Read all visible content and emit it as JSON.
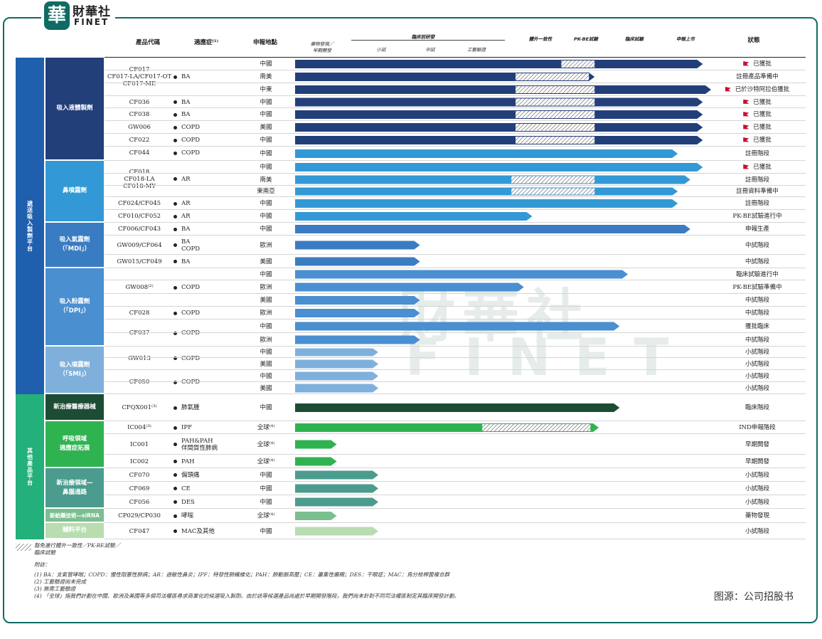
{
  "brand": {
    "mark": "華",
    "name_cn": "財華社",
    "name_en": "FINET"
  },
  "watermark": {
    "cn": "財華社",
    "en": "FINET"
  },
  "header": {
    "product_code": "產品代碼",
    "indication": "適應症⁽¹⁾",
    "region": "申報地點",
    "drug_discovery": "藥物發現／\n早期開發",
    "preclinical": "臨床前研發",
    "small_trial": "小試",
    "pilot_trial": "中試",
    "process_validation": "工藝驗證",
    "in_vitro": "體外一致性",
    "pk_be": "PK-BE試驗",
    "clinical": "臨床試驗",
    "launch": "申報上市",
    "status": "狀態"
  },
  "colors": {
    "inhal_liquid": "#233f7a",
    "nasal": "#3399d6",
    "mdi": "#3a7cc2",
    "dpi": "#4a8fd0",
    "smi": "#7fb0dc",
    "platform_1": "#1f5fae",
    "platform_2": "#23b07a",
    "device": "#1c4d34",
    "resp_expand": "#2fb350",
    "new_ent": "#4b9c8e",
    "sirna": "#7bbf90",
    "excip": "#b9ddb0",
    "accent_flag": "#c8102e"
  },
  "platforms": [
    {
      "label": "遞送吸入製劑平台"
    },
    {
      "label": "其他產品平台"
    }
  ],
  "categories": [
    {
      "label": "吸入液體製劑"
    },
    {
      "label": "鼻噴霧劑"
    },
    {
      "label": "吸入氣霧劑\n（「MDI」）"
    },
    {
      "label": "吸入粉霧劑\n（「DPI」）"
    },
    {
      "label": "吸入噴霧劑\n（「SMI」）"
    },
    {
      "label": "新治療醫療器械"
    },
    {
      "label": "呼吸領域\n適應症拓展"
    },
    {
      "label": "新治療領域—\n鼻腦通路"
    },
    {
      "label": "新給藥技術—siRNA"
    },
    {
      "label": "輔料平台"
    }
  ],
  "products": [
    {
      "code": "CF017\nCF017-LA/CF017-OT\nCF017-ME",
      "indication": "BA"
    },
    {
      "code": "CF036",
      "indication": "BA"
    },
    {
      "code": "CF038",
      "indication": "BA"
    },
    {
      "code": "GW006",
      "indication": "COPD"
    },
    {
      "code": "CF022",
      "indication": "COPD"
    },
    {
      "code": "CF044",
      "indication": "COPD"
    },
    {
      "code": "CF018\nCF018-LA\nCF018-MY",
      "indication": "AR"
    },
    {
      "code": "CF024/CF045",
      "indication": "AR"
    },
    {
      "code": "CF010/CF052",
      "indication": "AR"
    },
    {
      "code": "CF006/CF043",
      "indication": "BA"
    },
    {
      "code": "GW009/CF064",
      "indication": "BA\nCOPD"
    },
    {
      "code": "GW015/CF049",
      "indication": "BA"
    },
    {
      "code": "GW008⁽²⁾",
      "indication": "COPD"
    },
    {
      "code": "CF028",
      "indication": "COPD"
    },
    {
      "code": "CF037",
      "indication": "COPD"
    },
    {
      "code": "GW013",
      "indication": "COPD"
    },
    {
      "code": "CF050",
      "indication": "COPD"
    },
    {
      "code": "CFQX001⁽³⁾",
      "indication": "肺氣腫"
    },
    {
      "code": "IC004⁽³⁾",
      "indication": "IPF"
    },
    {
      "code": "IC001",
      "indication": "PAH&PAH\n伴間質性肺病"
    },
    {
      "code": "IC002",
      "indication": "PAH"
    },
    {
      "code": "CF070",
      "indication": "偏頭痛"
    },
    {
      "code": "CF069",
      "indication": "CE"
    },
    {
      "code": "CF056",
      "indication": "DES"
    },
    {
      "code": "CP029/CP030",
      "indication": "哮喘"
    },
    {
      "code": "CF047",
      "indication": "MAC及其他"
    }
  ],
  "rows": [
    {
      "region": "中國",
      "status": "已獲批",
      "flag": true,
      "progress": 0.98,
      "hatch": [
        0.64,
        0.72
      ]
    },
    {
      "region": "南美",
      "status": "註冊產品準備中",
      "flag": false,
      "progress": 0.72,
      "hatch": [
        0.53,
        0.72
      ]
    },
    {
      "region": "中東",
      "status": "已於沙特阿拉伯獲批",
      "flag": true,
      "progress": 1.0,
      "hatch": [
        0.53,
        0.72
      ]
    },
    {
      "region": "中國",
      "status": "已獲批",
      "flag": true,
      "progress": 0.98,
      "hatch": [
        0.53,
        0.72
      ]
    },
    {
      "region": "中國",
      "status": "已獲批",
      "flag": true,
      "progress": 0.98,
      "hatch": [
        0.53,
        0.72
      ]
    },
    {
      "region": "美國",
      "status": "已獲批",
      "flag": true,
      "progress": 0.98,
      "hatch": [
        0.53,
        0.72
      ]
    },
    {
      "region": "中國",
      "status": "已獲批",
      "flag": true,
      "progress": 0.98,
      "hatch": [
        0.53,
        0.72
      ]
    },
    {
      "region": "中國",
      "status": "註冊階段",
      "flag": false,
      "progress": 0.92,
      "hatch": null
    },
    {
      "region": "中國",
      "status": "已獲批",
      "flag": true,
      "progress": 0.98,
      "hatch": null
    },
    {
      "region": "南美",
      "status": "註冊階段",
      "flag": false,
      "progress": 0.95,
      "hatch": [
        0.52,
        0.72
      ]
    },
    {
      "region": "東南亞",
      "status": "註冊資料準備中",
      "flag": false,
      "progress": 0.92,
      "hatch": [
        0.52,
        0.72
      ]
    },
    {
      "region": "中國",
      "status": "註冊階段",
      "flag": false,
      "progress": 0.92,
      "hatch": null
    },
    {
      "region": "中國",
      "status": "PK-BE試驗進行中",
      "flag": false,
      "progress": 0.57,
      "hatch": null
    },
    {
      "region": "中國",
      "status": "申報生產",
      "flag": false,
      "progress": 0.95,
      "hatch": null
    },
    {
      "region": "歐洲",
      "status": "中試階段",
      "flag": false,
      "progress": 0.3,
      "hatch": null
    },
    {
      "region": "美國",
      "status": "中試階段",
      "flag": false,
      "progress": 0.3,
      "hatch": null
    },
    {
      "region": "中國",
      "status": "臨床試驗進行中",
      "flag": false,
      "progress": 0.8,
      "hatch": null
    },
    {
      "region": "歐洲",
      "status": "PK-BE試驗準備中",
      "flag": false,
      "progress": 0.55,
      "hatch": null
    },
    {
      "region": "美國",
      "status": "中試階段",
      "flag": false,
      "progress": 0.3,
      "hatch": null
    },
    {
      "region": "歐洲",
      "status": "中試階段",
      "flag": false,
      "progress": 0.3,
      "hatch": null
    },
    {
      "region": "中國",
      "status": "獲批臨床",
      "flag": false,
      "progress": 0.78,
      "hatch": null
    },
    {
      "region": "歐洲",
      "status": "中試階段",
      "flag": false,
      "progress": 0.3,
      "hatch": null
    },
    {
      "region": "中國",
      "status": "小試階段",
      "flag": false,
      "progress": 0.2,
      "hatch": null
    },
    {
      "region": "美國",
      "status": "小試階段",
      "flag": false,
      "progress": 0.2,
      "hatch": null
    },
    {
      "region": "中國",
      "status": "小試階段",
      "flag": false,
      "progress": 0.2,
      "hatch": null
    },
    {
      "region": "美國",
      "status": "小試階段",
      "flag": false,
      "progress": 0.2,
      "hatch": null
    },
    {
      "region": "中國",
      "status": "臨床階段",
      "flag": false,
      "progress": 0.78,
      "hatch": null
    },
    {
      "region": "全球⁽⁴⁾",
      "status": "IND申報階段",
      "flag": false,
      "progress": 0.73,
      "hatch": [
        0.45,
        0.71
      ]
    },
    {
      "region": "全球⁽⁴⁾",
      "status": "早期開發",
      "flag": false,
      "progress": 0.1,
      "hatch": null
    },
    {
      "region": "全球⁽⁴⁾",
      "status": "早期開發",
      "flag": false,
      "progress": 0.1,
      "hatch": null
    },
    {
      "region": "中國",
      "status": "小試階段",
      "flag": false,
      "progress": 0.2,
      "hatch": null
    },
    {
      "region": "中國",
      "status": "小試階段",
      "flag": false,
      "progress": 0.2,
      "hatch": null
    },
    {
      "region": "中國",
      "status": "小試階段",
      "flag": false,
      "progress": 0.2,
      "hatch": null
    },
    {
      "region": "全球⁽⁴⁾",
      "status": "藥物發現",
      "flag": false,
      "progress": 0.1,
      "hatch": null
    },
    {
      "region": "中國",
      "status": "小試階段",
      "flag": false,
      "progress": 0.2,
      "hatch": null
    }
  ],
  "legend": {
    "hatch_label": "豁免進行體外一致性／PK-BE試驗／\n臨床試驗"
  },
  "notes": {
    "title": "附註：",
    "n1": "(1)  BA：支氣管哮喘；COPD：慢性阻塞性肺病；AR：過敏性鼻炎；IPF：特發性肺纖維化；PAH：肺動脈高壓；CE：叢集性癲癇；DES：干眼症；MAC：鳥分枝桿菌複合群",
    "n2": "(2)  工藝驗證尚未完成",
    "n3": "(3)  無需工藝驗證",
    "n4": "(4)  「全球」指我們計劃在中國、歐洲及美國等多個司法權區尋求商業化的候選吸入製劑。由於該等候選產品尚處於早期開發階段，我們尚未針對不同司法權區制定其臨床開發計劃。"
  },
  "source": "图源：公司招股书"
}
